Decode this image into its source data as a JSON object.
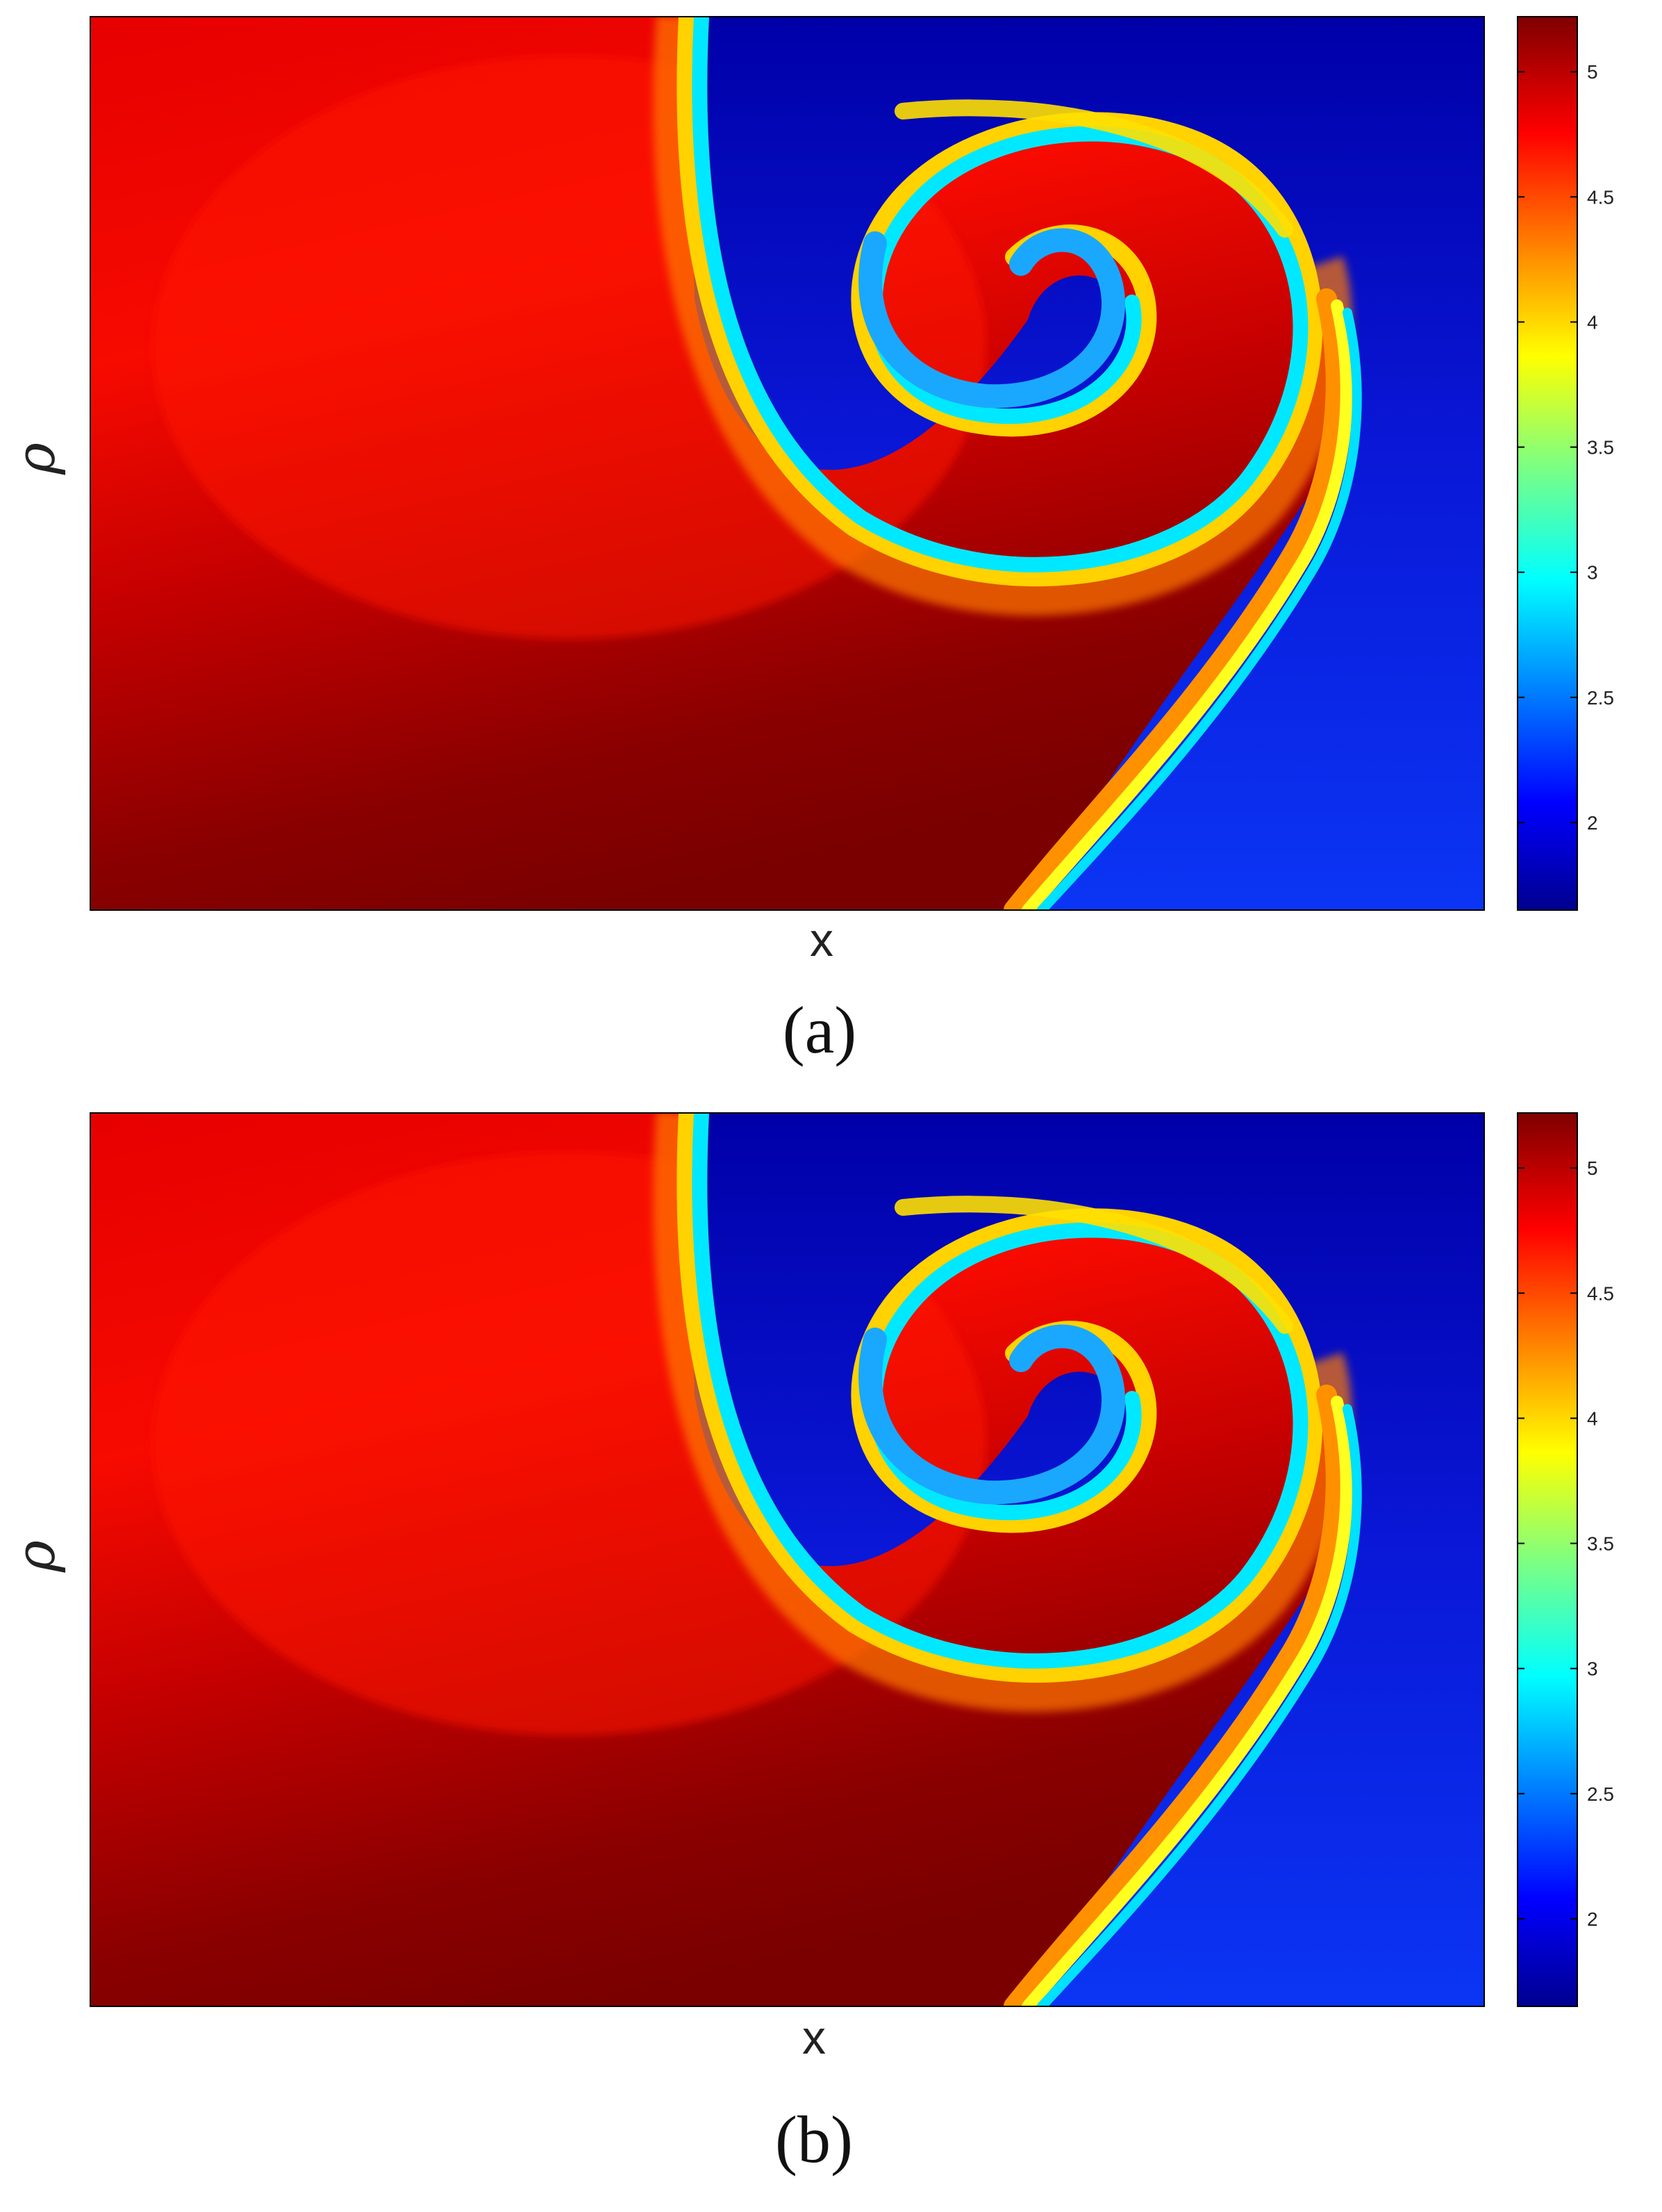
{
  "chart_data": [
    {
      "type": "heatmap",
      "panel_label": "(a)",
      "xlabel": "x",
      "ylabel": "ρ",
      "colorbar": {
        "ticks": [
          "2",
          "2.5",
          "3",
          "3.5",
          "4",
          "4.5",
          "5"
        ],
        "min": 1.65,
        "max": 5.22,
        "colormap": "jet"
      },
      "features": {
        "high_region": "left/lower-left (~5.2)",
        "low_region": "right (~1.8)",
        "structure": "Kelvin–Helmholtz roll-up spiral"
      }
    },
    {
      "type": "heatmap",
      "panel_label": "(b)",
      "xlabel": "x",
      "ylabel": "ρ",
      "colorbar": {
        "ticks": [
          "2",
          "2.5",
          "3",
          "3.5",
          "4",
          "4.5",
          "5"
        ],
        "min": 1.65,
        "max": 5.22,
        "colormap": "jet"
      },
      "features": {
        "high_region": "left/lower-left (~5.2)",
        "low_region": "right (~1.8)",
        "structure": "Kelvin–Helmholtz roll-up spiral"
      }
    }
  ],
  "colors": {
    "dark_red": "#7f0000",
    "red": "#ff1a00",
    "orange": "#ff8c00",
    "yellow": "#ffff00",
    "cyan": "#00e5ff",
    "blue": "#0a4bff",
    "dark_blue": "#00008f"
  }
}
